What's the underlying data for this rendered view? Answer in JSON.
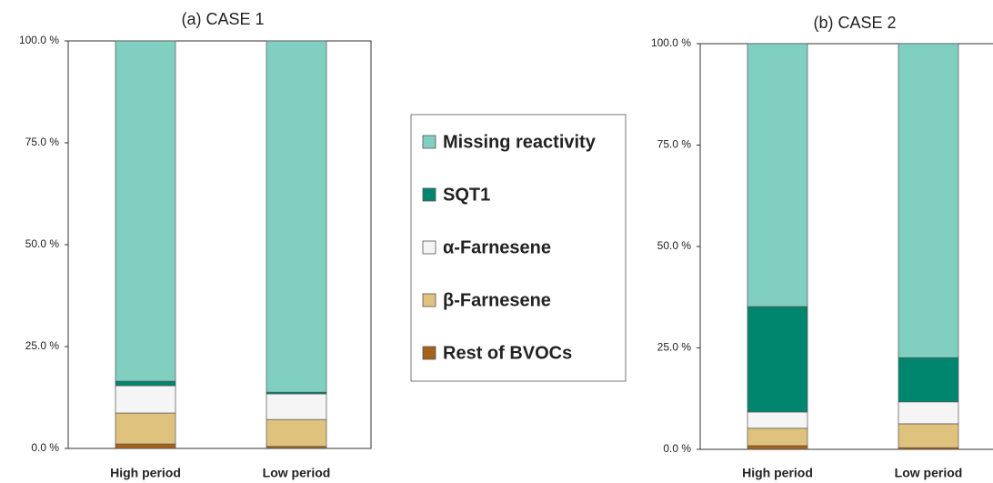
{
  "chart_data": [
    {
      "type": "stacked_bar",
      "title": "(a) CASE 1",
      "categories": [
        "High period",
        "Low period"
      ],
      "series": [
        {
          "name": "Rest of BVOCs",
          "color": "#a6611a",
          "values": [
            1.1,
            0.5
          ]
        },
        {
          "name": "β-Farnesene",
          "color": "#dfc27d",
          "values": [
            7.6,
            6.6
          ]
        },
        {
          "name": "α-Farnesene",
          "color": "#f5f5f5",
          "values": [
            6.7,
            6.3
          ]
        },
        {
          "name": "SQT1",
          "color": "#00856f",
          "values": [
            1.1,
            0.4
          ]
        },
        {
          "name": "Missing reactivity",
          "color": "#80cfc1",
          "values": [
            83.5,
            86.2
          ]
        }
      ],
      "ylim": [
        0,
        100
      ],
      "yticks": [
        {
          "value": 0,
          "label": "0.0 %"
        },
        {
          "value": 25,
          "label": "25.0 %"
        },
        {
          "value": 50,
          "label": "50.0 %"
        },
        {
          "value": 75,
          "label": "75.0 %"
        },
        {
          "value": 100,
          "label": "100.0 %"
        }
      ]
    },
    {
      "type": "stacked_bar",
      "title": "(b) CASE 2",
      "categories": [
        "High period",
        "Low period"
      ],
      "series": [
        {
          "color": "#a6611a",
          "values": [
            0.9,
            0.4
          ]
        },
        {
          "color": "#dfc27d",
          "values": [
            4.3,
            5.9
          ]
        },
        {
          "color": "#f5f5f5",
          "values": [
            4.0,
            5.4
          ]
        },
        {
          "color": "#00856f",
          "values": [
            26.0,
            10.9
          ]
        },
        {
          "color": "#80cfc1",
          "values": [
            64.8,
            77.4
          ]
        }
      ],
      "ylim": [
        0,
        100
      ],
      "yticks": [
        {
          "value": 0,
          "label": "0.0 %"
        },
        {
          "value": 25,
          "label": "25.0 %"
        },
        {
          "value": 50,
          "label": "50.0 %"
        },
        {
          "value": 75,
          "label": "75.0 %"
        },
        {
          "value": 100,
          "label": "100.0 %"
        }
      ]
    }
  ]
}
